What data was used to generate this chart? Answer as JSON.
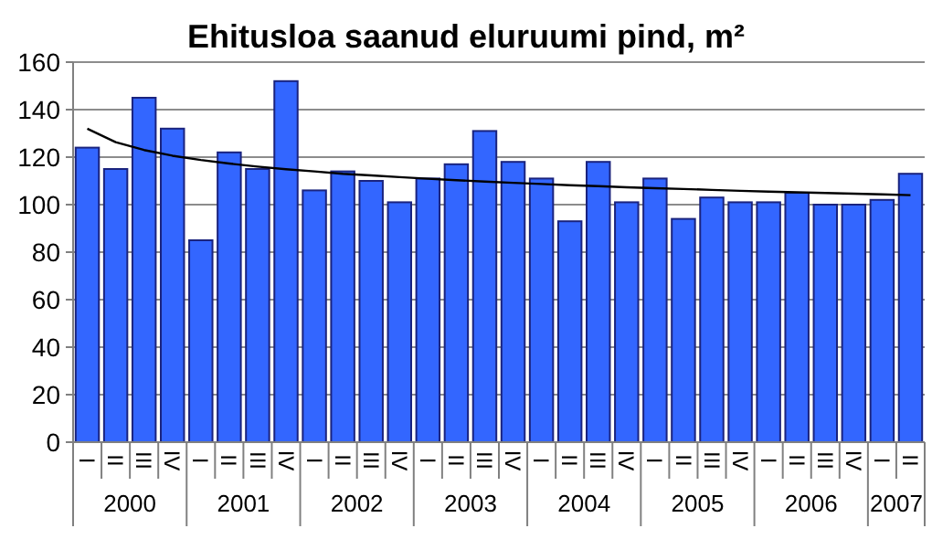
{
  "chart_data": {
    "type": "bar",
    "title": "Ehitusloa saanud eluruumi pind, m²",
    "categories": [
      "I",
      "II",
      "III",
      "IV",
      "I",
      "II",
      "III",
      "IV",
      "I",
      "II",
      "III",
      "IV",
      "I",
      "II",
      "III",
      "IV",
      "I",
      "II",
      "III",
      "IV",
      "I",
      "II",
      "III",
      "IV",
      "I",
      "II",
      "III",
      "IV",
      "I",
      "II"
    ],
    "series": [
      {
        "color": "#3366ff",
        "values": [
          124,
          115,
          145,
          132,
          85,
          122,
          115,
          152,
          106,
          114,
          110,
          101,
          111,
          117,
          131,
          118,
          111,
          93,
          118,
          101,
          111,
          94,
          103,
          101,
          101,
          105,
          100,
          100,
          102,
          113
        ]
      },
      {
        "type": "line",
        "color": "#000000",
        "values": [
          132,
          126.3,
          123,
          120.6,
          118.8,
          117.3,
          116,
          114.9,
          114,
          113,
          112.3,
          111.6,
          110.9,
          110.3,
          109.7,
          109.2,
          108.7,
          108.2,
          107.8,
          107.3,
          106.9,
          106.6,
          106.2,
          105.8,
          105.5,
          105.2,
          104.9,
          104.6,
          104.3,
          104
        ]
      }
    ],
    "annotations": [
      "2000",
      "2001",
      "2002",
      "2003",
      "2004",
      "2005",
      "2006",
      "2007"
    ],
    "ylim": [
      0,
      160
    ],
    "yticks": [
      0,
      20,
      40,
      60,
      80,
      100,
      120,
      140,
      160
    ],
    "grid": "y"
  }
}
